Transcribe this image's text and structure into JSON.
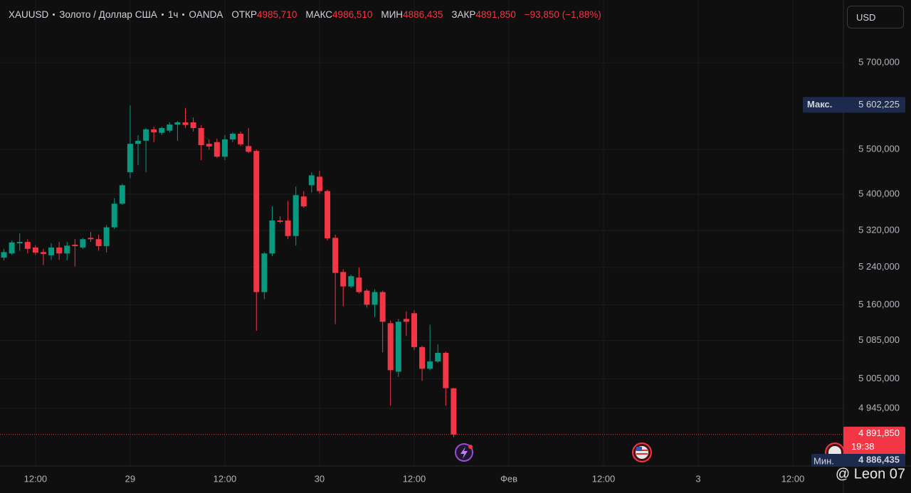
{
  "header": {
    "symbol": "XAUUSD",
    "name": "Золото / Доллар США",
    "interval": "1ч",
    "exchange": "OANDA",
    "open_label": "ОТКР",
    "open": "4985,710",
    "high_label": "МАКС",
    "high": "4986,510",
    "low_label": "МИН",
    "low": "4886,435",
    "close_label": "ЗАКР",
    "close": "4891,850",
    "change": "−93,850 (−1,88%)"
  },
  "currency": "USD",
  "watermark": "@ Leon 07",
  "chart_data": {
    "type": "candlestick",
    "log_scale": true,
    "grid": true,
    "up_color": "#089981",
    "down_color": "#f23645",
    "x": [
      -16,
      -15,
      -14,
      -13,
      -12,
      -11,
      -10,
      -9,
      -8,
      -7,
      -6,
      -5,
      -4,
      -3,
      -2,
      -1,
      0,
      1,
      2,
      3,
      4,
      5,
      6,
      7,
      8,
      9,
      10,
      11,
      12,
      13,
      14,
      15,
      16,
      17,
      18,
      19,
      20,
      21,
      22,
      23,
      24,
      25,
      26,
      27,
      28,
      29,
      30,
      31,
      32,
      33,
      34,
      35,
      36,
      37,
      38,
      39,
      40,
      41
    ],
    "open": [
      5261,
      5270,
      5292,
      5295,
      5283,
      5273,
      5266,
      5283,
      5270,
      5289,
      5283,
      5304,
      5301,
      5286,
      5327,
      5379,
      5449,
      5513,
      5520,
      5546,
      5538,
      5543,
      5557,
      5562,
      5562,
      5549,
      5513,
      5517,
      5484,
      5523,
      5536,
      5508,
      5497,
      5187,
      5270,
      5342,
      5342,
      5308,
      5395,
      5420,
      5439,
      5407,
      5304,
      5230,
      5199,
      5218,
      5190,
      5160,
      5187,
      5121,
      5020,
      5130,
      5142,
      5071,
      5026,
      5041,
      5059,
      4985.71
    ],
    "high": [
      5280,
      5298,
      5314,
      5301,
      5288,
      5280,
      5292,
      5295,
      5295,
      5301,
      5304,
      5317,
      5311,
      5332,
      5391,
      5423,
      5601,
      5533,
      5549,
      5552,
      5552,
      5562,
      5565,
      5595,
      5573,
      5556,
      5523,
      5525,
      5533,
      5539,
      5541,
      5549,
      5500,
      5273,
      5373,
      5351,
      5385,
      5417,
      5407,
      5449,
      5452,
      5410,
      5311,
      5236,
      5224,
      5240,
      5193,
      5193,
      5190,
      5127,
      5130,
      5146,
      5148,
      5074,
      5118,
      5077,
      5062,
      4986.51
    ],
    "low": [
      5255,
      5267,
      5276,
      5270,
      5267,
      5245,
      5256,
      5256,
      5255,
      5242,
      5280,
      5295,
      5276,
      5272,
      5323,
      5376,
      5436,
      5465,
      5449,
      5517,
      5533,
      5539,
      5520,
      5549,
      5541,
      5476,
      5500,
      5481,
      5476,
      5517,
      5508,
      5492,
      5105,
      5172,
      5264,
      5336,
      5301,
      5287,
      5370,
      5404,
      5401,
      5298,
      5119,
      5157,
      5196,
      5184,
      5154,
      5134,
      5060,
      4950,
      5009,
      5094,
      5065,
      5001,
      5023,
      5038,
      4950,
      4886.435
    ],
    "close": [
      5273,
      5294,
      5295,
      5280,
      5272,
      5269,
      5283,
      5270,
      5287,
      5286,
      5301,
      5301,
      5286,
      5327,
      5379,
      5420,
      5513,
      5520,
      5546,
      5539,
      5549,
      5557,
      5562,
      5556,
      5549,
      5510,
      5507,
      5484,
      5523,
      5536,
      5512,
      5495,
      5187,
      5270,
      5342,
      5339,
      5308,
      5398,
      5373,
      5442,
      5407,
      5303,
      5228,
      5199,
      5221,
      5187,
      5160,
      5187,
      5124,
      5023,
      5124,
      5124,
      5071,
      5026,
      5041,
      5059,
      4986,
      4891.85
    ],
    "xlim": [
      -16.5,
      90.4
    ],
    "xticks": [
      {
        "value": -12,
        "label": "12:00"
      },
      {
        "value": 0,
        "label": "29"
      },
      {
        "value": 12,
        "label": "12:00"
      },
      {
        "value": 24,
        "label": "30"
      },
      {
        "value": 36,
        "label": "12:00"
      },
      {
        "value": 48,
        "label": "Фев"
      },
      {
        "value": 60,
        "label": "12:00"
      },
      {
        "value": 72,
        "label": "3"
      },
      {
        "value": 84,
        "label": "12:00"
      }
    ],
    "ylim": [
      4829,
      5849
    ],
    "yticks": [
      {
        "value": 4945,
        "label": "4 945,000"
      },
      {
        "value": 5005,
        "label": "5 005,000"
      },
      {
        "value": 5085,
        "label": "5 085,000"
      },
      {
        "value": 5160,
        "label": "5 160,000"
      },
      {
        "value": 5240,
        "label": "5 240,000"
      },
      {
        "value": 5320,
        "label": "5 320,000"
      },
      {
        "value": 5400,
        "label": "5 400,000"
      },
      {
        "value": 5500,
        "label": "5 500,000"
      },
      {
        "value": 5700,
        "label": "5 700,000"
      }
    ],
    "max_marker": {
      "label": "Макс.",
      "value": 5602.225,
      "value_label": "5 602,225"
    },
    "min_marker": {
      "label": "Мин.",
      "value": 4886.435,
      "value_label": "4 886,435"
    },
    "last_price": {
      "value": 4891.85,
      "value_label": "4 891,850",
      "countdown": "19:38"
    }
  }
}
